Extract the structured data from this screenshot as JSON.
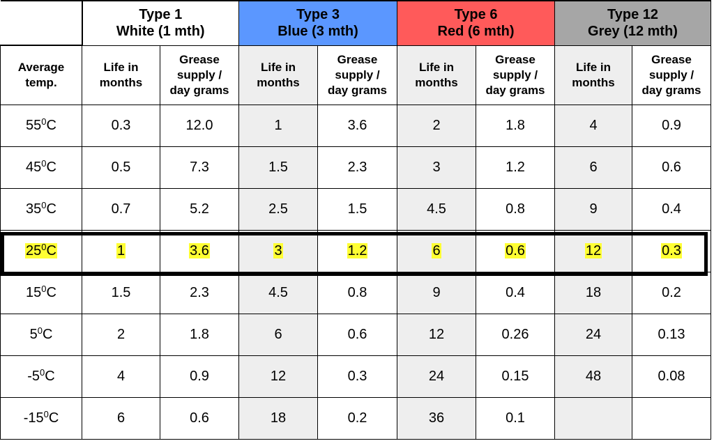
{
  "chart_data": {
    "type": "table",
    "column_groups": [
      {
        "line1": "Type 1",
        "line2": "White (1 mth)",
        "color": "#ffffff"
      },
      {
        "line1": "Type 3",
        "line2": "Blue (3 mth)",
        "color": "#5b97ff"
      },
      {
        "line1": "Type 6",
        "line2": "Red (6 mth)",
        "color": "#ff5a5a"
      },
      {
        "line1": "Type 12",
        "line2": "Grey (12 mth)",
        "color": "#a6a6a6"
      }
    ],
    "row_header_label": [
      "Average",
      "temp."
    ],
    "sub_headers": {
      "life": [
        "Life in",
        "months"
      ],
      "grease": [
        "Grease",
        "supply /",
        "day grams"
      ]
    },
    "rows": [
      {
        "temp": "55",
        "unit": "C",
        "values": [
          "0.3",
          "12.0",
          "1",
          "3.6",
          "2",
          "1.8",
          "4",
          "0.9"
        ]
      },
      {
        "temp": "45",
        "unit": "C",
        "values": [
          "0.5",
          "7.3",
          "1.5",
          "2.3",
          "3",
          "1.2",
          "6",
          "0.6"
        ]
      },
      {
        "temp": "35",
        "unit": "C",
        "values": [
          "0.7",
          "5.2",
          "2.5",
          "1.5",
          "4.5",
          "0.8",
          "9",
          "0.4"
        ]
      },
      {
        "temp": "25",
        "unit": "C",
        "values": [
          "1",
          "3.6",
          "3",
          "1.2",
          "6",
          "0.6",
          "12",
          "0.3"
        ],
        "highlighted": true
      },
      {
        "temp": "15",
        "unit": "C",
        "values": [
          "1.5",
          "2.3",
          "4.5",
          "0.8",
          "9",
          "0.4",
          "18",
          "0.2"
        ]
      },
      {
        "temp": "5",
        "unit": "C",
        "values": [
          "2",
          "1.8",
          "6",
          "0.6",
          "12",
          "0.26",
          "24",
          "0.13"
        ]
      },
      {
        "temp": "-5",
        "unit": "C",
        "values": [
          "4",
          "0.9",
          "12",
          "0.3",
          "24",
          "0.15",
          "48",
          "0.08"
        ]
      },
      {
        "temp": "-15",
        "unit": "C",
        "values": [
          "6",
          "0.6",
          "18",
          "0.2",
          "36",
          "0.1",
          "",
          ""
        ]
      }
    ],
    "highlight_color": "#ffff33"
  }
}
